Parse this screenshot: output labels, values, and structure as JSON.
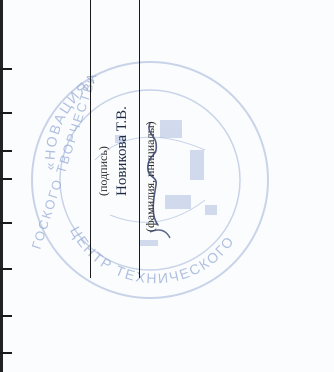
{
  "signature_block": {
    "signature_caption": "(подпись)",
    "name": "Новикова Т.В.",
    "name_caption": "(фамилия, инициалы)"
  },
  "stamp": {
    "text_top": "«НОВАЦИЯ»",
    "text_left": "ГОСКОГО ТВОРЧЕСТВА",
    "text_bottom": "ЦЕНТР ТЕХНИЧЕСКОГО",
    "color": "#9fb3d9"
  },
  "colors": {
    "ink": "#1a1a1a",
    "signature_ink": "#33406e"
  }
}
